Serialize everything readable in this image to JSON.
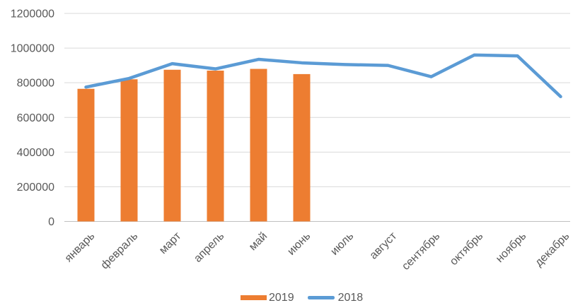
{
  "chart_data": {
    "type": "combo",
    "categories": [
      "январь",
      "февраль",
      "март",
      "апрель",
      "май",
      "июнь",
      "июль",
      "август",
      "сентябрь",
      "октябрь",
      "ноябрь",
      "декабрь"
    ],
    "series": [
      {
        "name": "2019",
        "type": "bar",
        "color": "#ED7D31",
        "values": [
          765000,
          820000,
          875000,
          870000,
          880000,
          850000,
          null,
          null,
          null,
          null,
          null,
          null
        ]
      },
      {
        "name": "2018",
        "type": "line",
        "color": "#5B9BD5",
        "values": [
          775000,
          825000,
          910000,
          880000,
          935000,
          915000,
          905000,
          900000,
          835000,
          960000,
          955000,
          720000
        ]
      }
    ],
    "title": "",
    "xlabel": "",
    "ylabel": "",
    "ylim": [
      0,
      1200000
    ],
    "ytick_step": 200000,
    "ytick_labels": [
      "0",
      "200000",
      "400000",
      "600000",
      "800000",
      "1000000",
      "1200000"
    ],
    "grid": true,
    "legend_position": "bottom",
    "colors": {
      "grid": "#D9D9D9",
      "axis": "#BFBFBF",
      "text": "#595959",
      "background": "#FFFFFF"
    }
  }
}
